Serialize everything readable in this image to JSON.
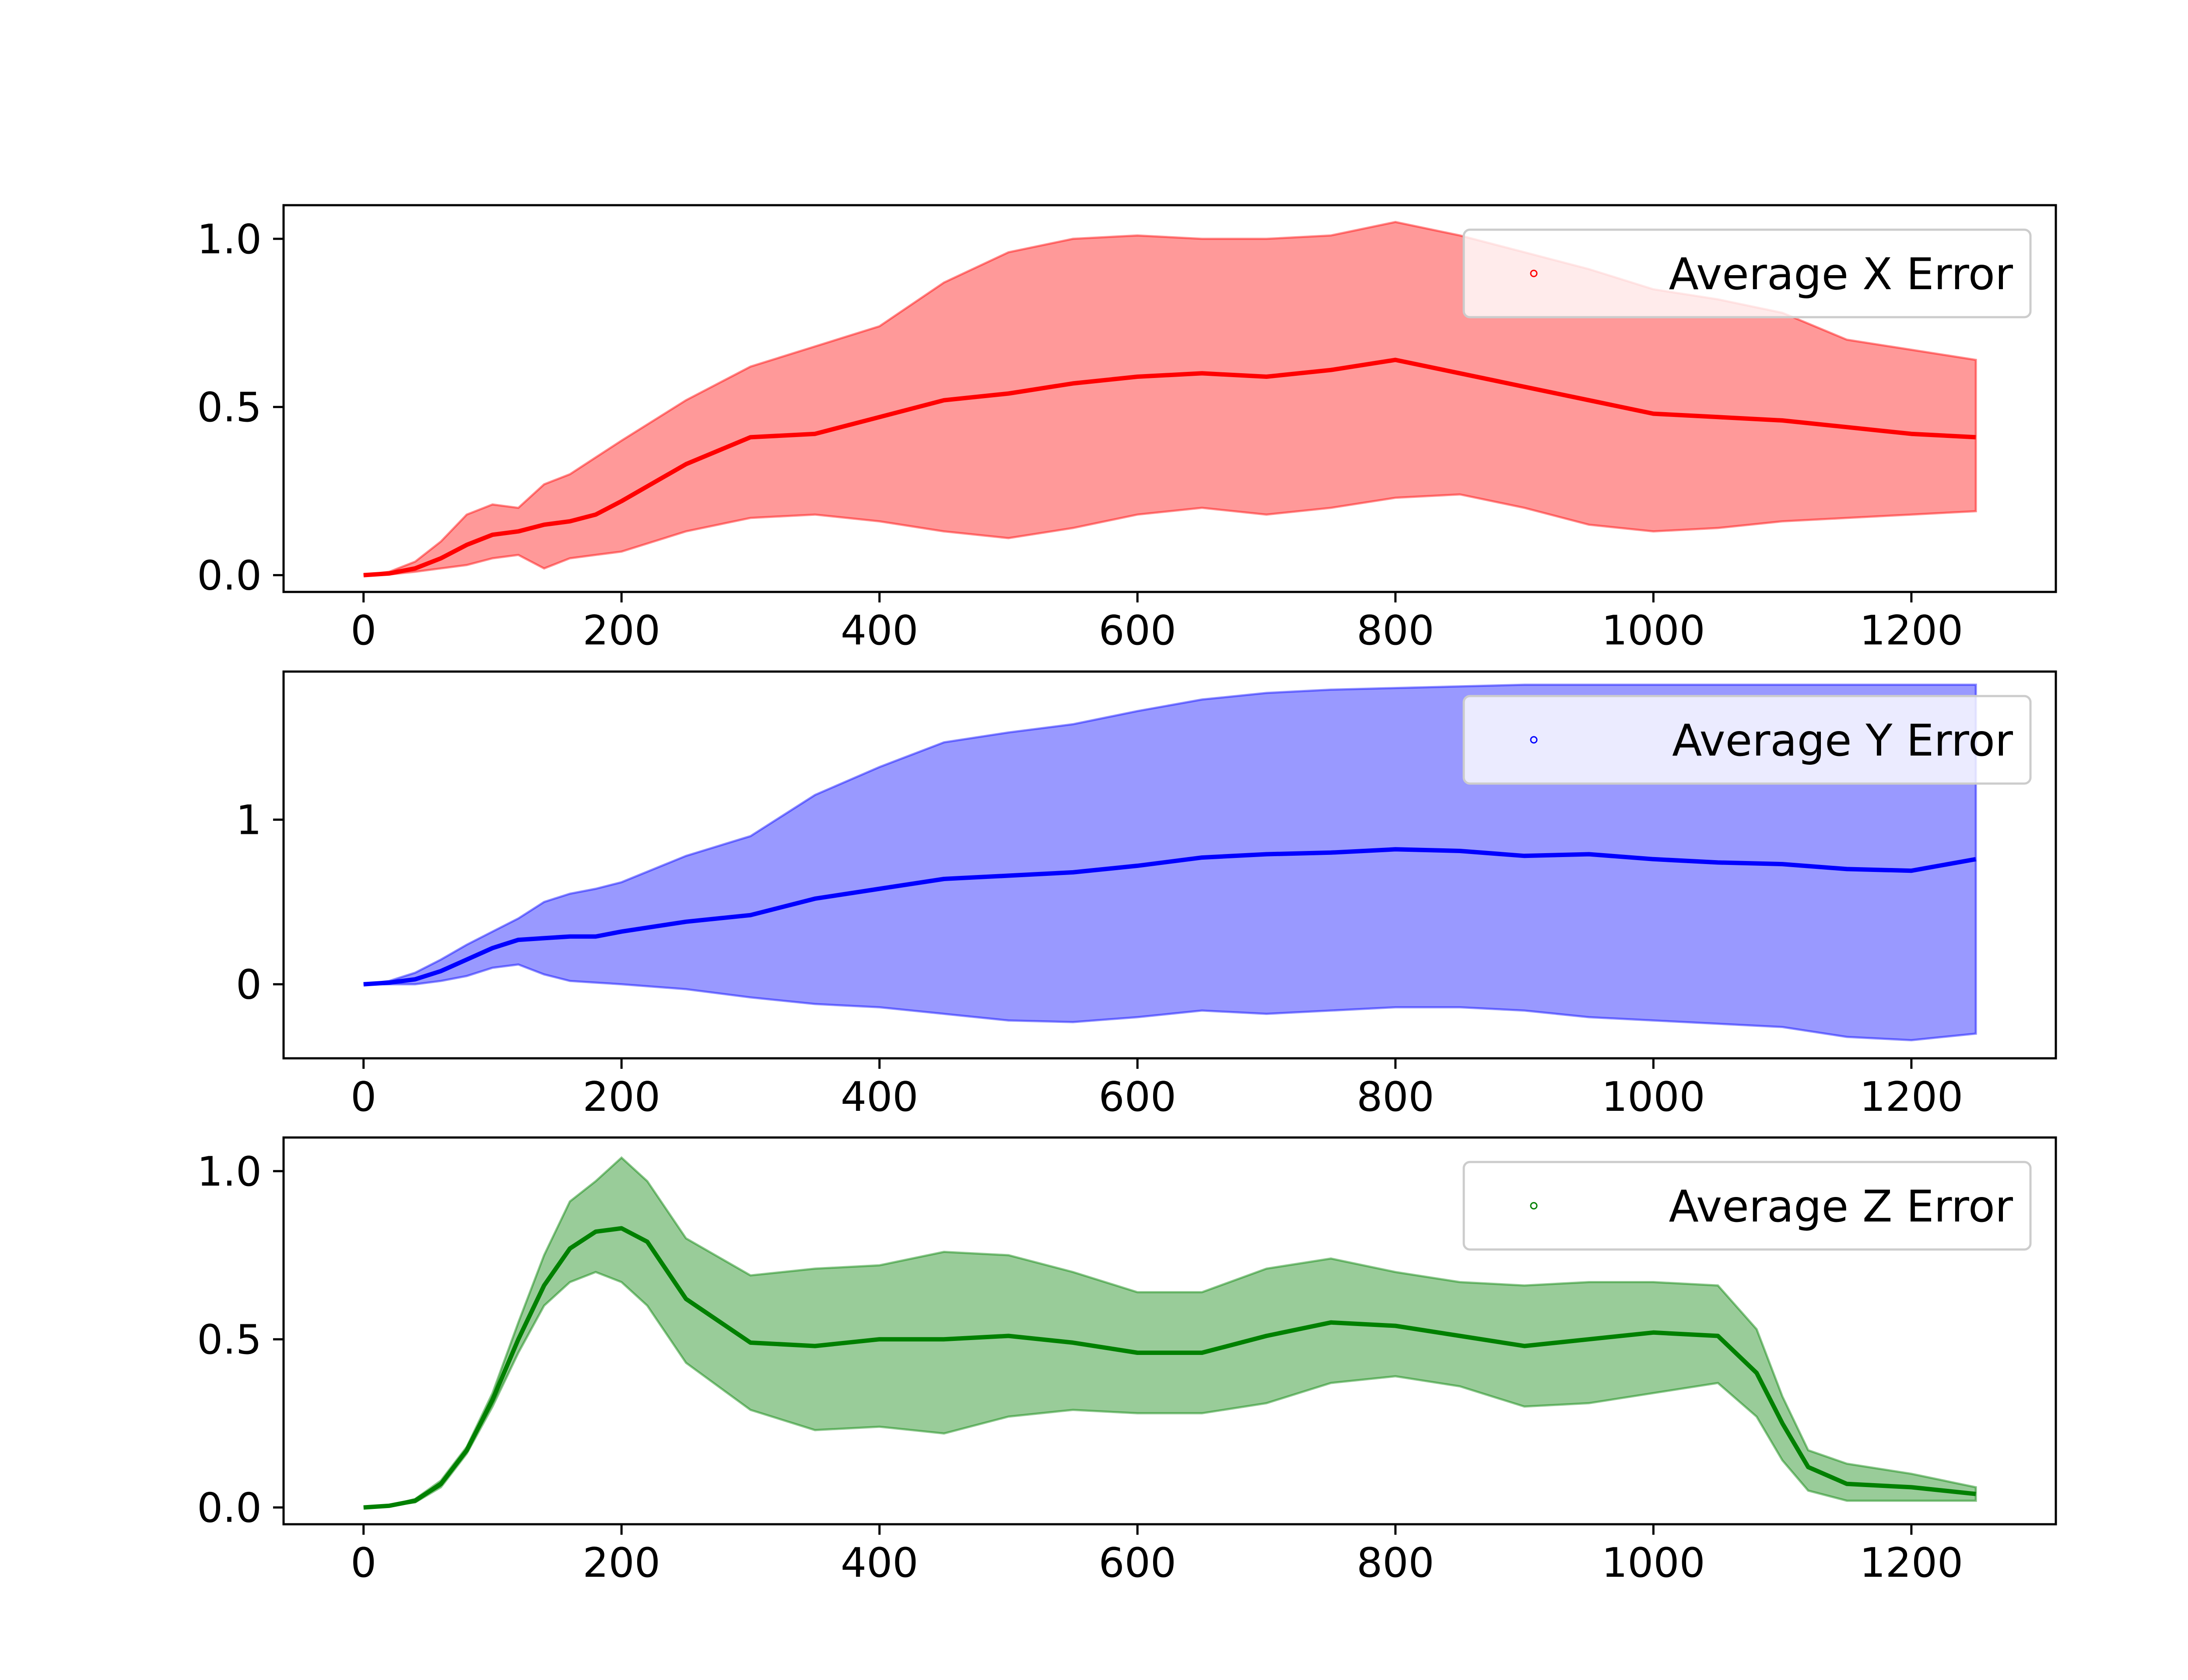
{
  "chart_data": [
    {
      "type": "line",
      "title": "",
      "xlabel": "",
      "ylabel": "",
      "xlim": [
        -62,
        1312
      ],
      "ylim": [
        -0.05,
        1.1
      ],
      "xticks": [
        0,
        200,
        400,
        600,
        800,
        1000,
        1200
      ],
      "xtick_labels": [
        "0",
        "200",
        "400",
        "600",
        "800",
        "1000",
        "1200"
      ],
      "yticks": [
        0.0,
        0.5,
        1.0
      ],
      "ytick_labels": [
        "0.0",
        "0.5",
        "1.0"
      ],
      "grid": false,
      "legend_position": "top-right",
      "color": "#ff0000",
      "band_color": "#ff0000",
      "band_opacity": 0.4,
      "series": [
        {
          "name": "Average X Error",
          "x": [
            0,
            20,
            40,
            60,
            80,
            100,
            120,
            140,
            160,
            180,
            200,
            250,
            300,
            350,
            400,
            450,
            500,
            550,
            600,
            650,
            700,
            750,
            800,
            850,
            900,
            950,
            1000,
            1050,
            1100,
            1150,
            1200,
            1250
          ],
          "mean": [
            0.0,
            0.005,
            0.02,
            0.05,
            0.09,
            0.12,
            0.13,
            0.15,
            0.16,
            0.18,
            0.22,
            0.33,
            0.41,
            0.42,
            0.47,
            0.52,
            0.54,
            0.57,
            0.59,
            0.6,
            0.59,
            0.61,
            0.64,
            0.6,
            0.56,
            0.52,
            0.48,
            0.47,
            0.46,
            0.44,
            0.42,
            0.41
          ],
          "upper": [
            0.0,
            0.01,
            0.04,
            0.1,
            0.18,
            0.21,
            0.2,
            0.27,
            0.3,
            0.35,
            0.4,
            0.52,
            0.62,
            0.68,
            0.74,
            0.87,
            0.96,
            1.0,
            1.01,
            1.0,
            1.0,
            1.01,
            1.05,
            1.01,
            0.96,
            0.91,
            0.85,
            0.82,
            0.78,
            0.7,
            0.67,
            0.64
          ],
          "lower": [
            0.0,
            0.002,
            0.01,
            0.02,
            0.03,
            0.05,
            0.06,
            0.02,
            0.05,
            0.06,
            0.07,
            0.13,
            0.17,
            0.18,
            0.16,
            0.13,
            0.11,
            0.14,
            0.18,
            0.2,
            0.18,
            0.2,
            0.23,
            0.24,
            0.2,
            0.15,
            0.13,
            0.14,
            0.16,
            0.17,
            0.18,
            0.19
          ]
        }
      ]
    },
    {
      "type": "line",
      "title": "",
      "xlabel": "",
      "ylabel": "",
      "xlim": [
        -62,
        1312
      ],
      "ylim": [
        -0.45,
        1.9
      ],
      "xticks": [
        0,
        200,
        400,
        600,
        800,
        1000,
        1200
      ],
      "xtick_labels": [
        "0",
        "200",
        "400",
        "600",
        "800",
        "1000",
        "1200"
      ],
      "yticks": [
        0,
        1
      ],
      "ytick_labels": [
        "0",
        "1"
      ],
      "grid": false,
      "legend_position": "top-right",
      "color": "#0000ff",
      "band_color": "#0000ff",
      "band_opacity": 0.4,
      "series": [
        {
          "name": "Average Y Error",
          "x": [
            0,
            20,
            40,
            60,
            80,
            100,
            120,
            140,
            160,
            180,
            200,
            250,
            300,
            350,
            400,
            450,
            500,
            550,
            600,
            650,
            700,
            750,
            800,
            850,
            900,
            950,
            1000,
            1050,
            1100,
            1150,
            1200,
            1250
          ],
          "mean": [
            0.0,
            0.01,
            0.03,
            0.08,
            0.15,
            0.22,
            0.27,
            0.28,
            0.29,
            0.29,
            0.32,
            0.38,
            0.42,
            0.52,
            0.58,
            0.64,
            0.66,
            0.68,
            0.72,
            0.77,
            0.79,
            0.8,
            0.82,
            0.81,
            0.78,
            0.79,
            0.76,
            0.74,
            0.73,
            0.7,
            0.69,
            0.76
          ],
          "upper": [
            0.0,
            0.02,
            0.07,
            0.15,
            0.24,
            0.32,
            0.4,
            0.5,
            0.55,
            0.58,
            0.62,
            0.78,
            0.9,
            1.15,
            1.32,
            1.47,
            1.53,
            1.58,
            1.66,
            1.73,
            1.77,
            1.79,
            1.8,
            1.81,
            1.82,
            1.82,
            1.82,
            1.82,
            1.82,
            1.82,
            1.82,
            1.82
          ],
          "lower": [
            0.0,
            0.0,
            0.0,
            0.02,
            0.05,
            0.1,
            0.12,
            0.06,
            0.02,
            0.01,
            0.0,
            -0.03,
            -0.08,
            -0.12,
            -0.14,
            -0.18,
            -0.22,
            -0.23,
            -0.2,
            -0.16,
            -0.18,
            -0.16,
            -0.14,
            -0.14,
            -0.16,
            -0.2,
            -0.22,
            -0.24,
            -0.26,
            -0.32,
            -0.34,
            -0.3
          ]
        }
      ]
    },
    {
      "type": "line",
      "title": "",
      "xlabel": "",
      "ylabel": "",
      "xlim": [
        -62,
        1312
      ],
      "ylim": [
        -0.05,
        1.1
      ],
      "xticks": [
        0,
        200,
        400,
        600,
        800,
        1000,
        1200
      ],
      "xtick_labels": [
        "0",
        "200",
        "400",
        "600",
        "800",
        "1000",
        "1200"
      ],
      "yticks": [
        0.0,
        0.5,
        1.0
      ],
      "ytick_labels": [
        "0.0",
        "0.5",
        "1.0"
      ],
      "grid": false,
      "legend_position": "top-right",
      "color": "#008000",
      "band_color": "#008000",
      "band_opacity": 0.4,
      "series": [
        {
          "name": "Average Z Error",
          "x": [
            0,
            20,
            40,
            60,
            80,
            100,
            120,
            140,
            160,
            180,
            200,
            220,
            250,
            300,
            350,
            400,
            450,
            500,
            550,
            600,
            650,
            700,
            750,
            800,
            850,
            900,
            950,
            1000,
            1050,
            1080,
            1100,
            1120,
            1150,
            1200,
            1250
          ],
          "mean": [
            0.0,
            0.005,
            0.02,
            0.07,
            0.17,
            0.32,
            0.5,
            0.66,
            0.77,
            0.82,
            0.83,
            0.79,
            0.62,
            0.49,
            0.48,
            0.5,
            0.5,
            0.51,
            0.49,
            0.46,
            0.46,
            0.51,
            0.55,
            0.54,
            0.51,
            0.48,
            0.5,
            0.52,
            0.51,
            0.4,
            0.25,
            0.12,
            0.07,
            0.06,
            0.04
          ],
          "upper": [
            0.0,
            0.005,
            0.025,
            0.08,
            0.18,
            0.34,
            0.55,
            0.75,
            0.91,
            0.97,
            1.04,
            0.97,
            0.8,
            0.69,
            0.71,
            0.72,
            0.76,
            0.75,
            0.7,
            0.64,
            0.64,
            0.71,
            0.74,
            0.7,
            0.67,
            0.66,
            0.67,
            0.67,
            0.66,
            0.53,
            0.33,
            0.17,
            0.13,
            0.1,
            0.06
          ],
          "lower": [
            0.0,
            0.005,
            0.015,
            0.06,
            0.16,
            0.3,
            0.46,
            0.6,
            0.67,
            0.7,
            0.67,
            0.6,
            0.43,
            0.29,
            0.23,
            0.24,
            0.22,
            0.27,
            0.29,
            0.28,
            0.28,
            0.31,
            0.37,
            0.39,
            0.36,
            0.3,
            0.31,
            0.34,
            0.37,
            0.27,
            0.14,
            0.05,
            0.02,
            0.02,
            0.02
          ]
        }
      ]
    }
  ]
}
